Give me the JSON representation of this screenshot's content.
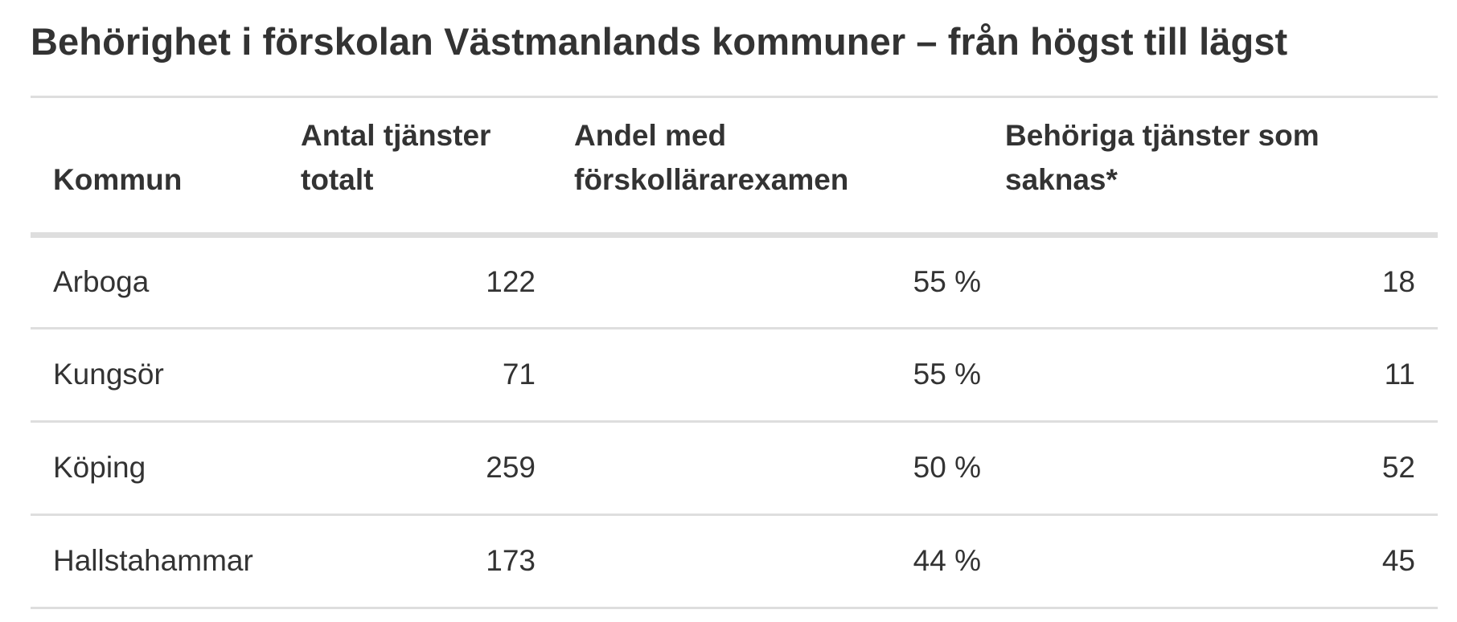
{
  "chart_data": {
    "type": "table",
    "title": "Behörighet i förskolan Västmanlands kommuner – från högst till lägst",
    "columns": [
      "Kommun",
      "Antal tjänster totalt",
      "Andel med förskollärarexamen",
      "Behöriga tjänster som saknas*"
    ],
    "rows": [
      [
        "Arboga",
        "122",
        "55 %",
        "18"
      ],
      [
        "Kungsör",
        "71",
        "55 %",
        "11"
      ],
      [
        "Köping",
        "259",
        "50 %",
        "52"
      ],
      [
        "Hallstahammar",
        "173",
        "44 %",
        "45"
      ]
    ]
  }
}
